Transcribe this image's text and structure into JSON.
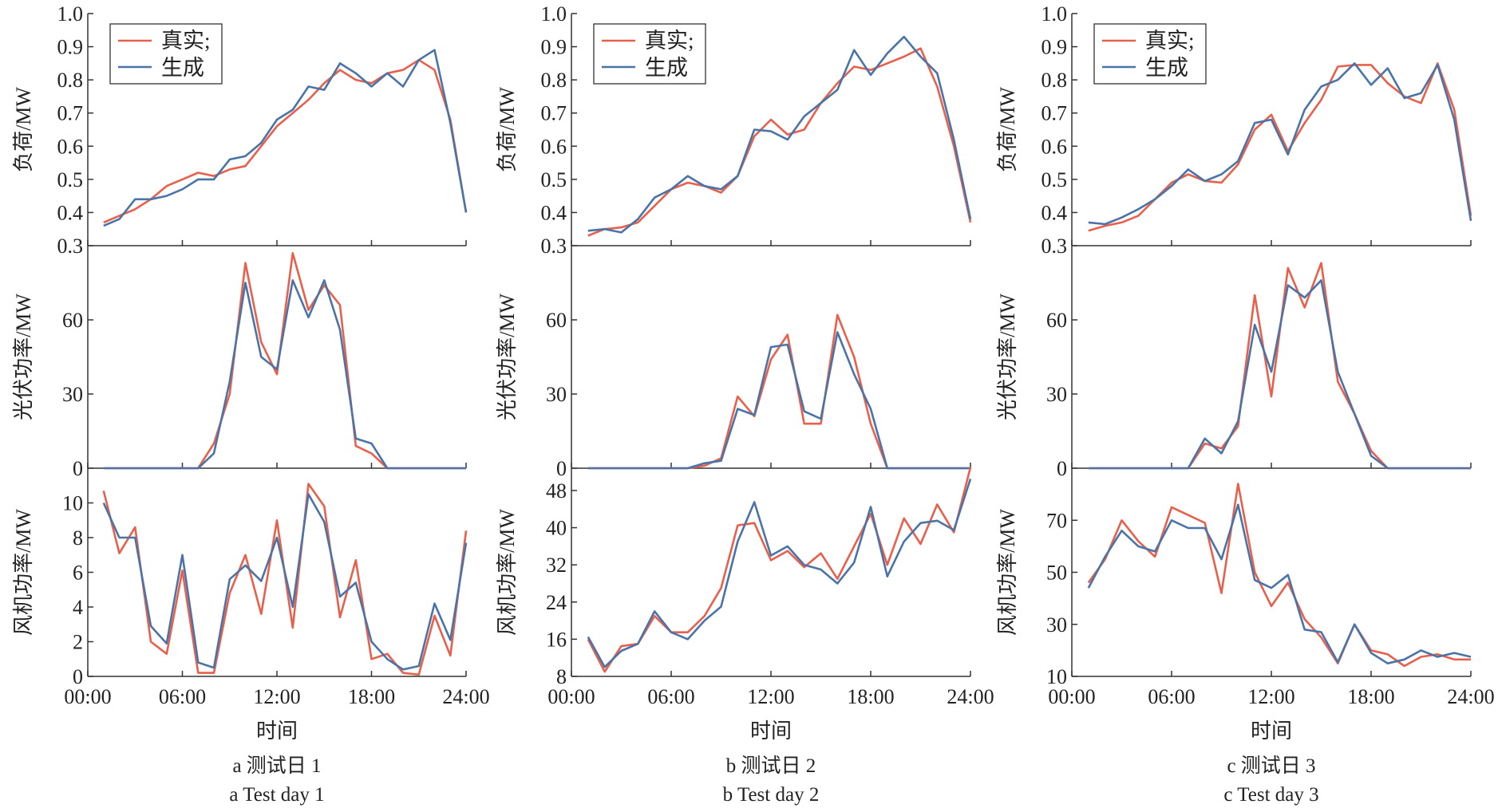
{
  "legend": {
    "real": "真实;",
    "generated": "生成"
  },
  "colors": {
    "real": "#e8604c",
    "generated": "#4a74a8",
    "axis": "#333333"
  },
  "xlabel": "时间",
  "xticks": [
    "00:00",
    "06:00",
    "12:00",
    "18:00",
    "24:00"
  ],
  "chart_data": [
    {
      "type": "line",
      "caption_cn": "a  测试日 1",
      "caption_en": "a  Test day 1",
      "x": [
        1,
        2,
        3,
        4,
        5,
        6,
        7,
        8,
        9,
        10,
        11,
        12,
        13,
        14,
        15,
        16,
        17,
        18,
        19,
        20,
        21,
        22,
        23,
        24
      ],
      "xlim": [
        0,
        24
      ],
      "panels": [
        {
          "ylabel": "负荷/MW",
          "ylim": [
            0.3,
            1.0
          ],
          "yticks": [
            "0.3",
            "0.4",
            "0.5",
            "0.6",
            "0.7",
            "0.8",
            "0.9",
            "1.0"
          ],
          "real": [
            0.37,
            0.39,
            0.41,
            0.44,
            0.48,
            0.5,
            0.52,
            0.51,
            0.53,
            0.54,
            0.6,
            0.66,
            0.7,
            0.74,
            0.79,
            0.83,
            0.8,
            0.79,
            0.82,
            0.83,
            0.86,
            0.83,
            0.68,
            0.4
          ],
          "generated": [
            0.36,
            0.38,
            0.44,
            0.44,
            0.45,
            0.47,
            0.5,
            0.5,
            0.56,
            0.57,
            0.61,
            0.68,
            0.71,
            0.78,
            0.77,
            0.85,
            0.82,
            0.78,
            0.82,
            0.78,
            0.86,
            0.89,
            0.67,
            0.4
          ]
        },
        {
          "ylabel": "光伏功率/MW",
          "ylim": [
            0,
            90
          ],
          "yticks": [
            "0",
            "30",
            "60"
          ],
          "real": [
            0,
            0,
            0,
            0,
            0,
            0,
            0,
            10,
            30,
            83,
            51,
            38,
            87,
            64,
            74,
            66,
            9,
            6,
            0,
            0,
            0,
            0,
            0,
            0
          ],
          "generated": [
            0,
            0,
            0,
            0,
            0,
            0,
            0,
            6,
            35,
            75,
            45,
            40,
            76,
            61,
            76,
            56,
            12,
            10,
            0,
            0,
            0,
            0,
            0,
            0
          ]
        },
        {
          "ylabel": "风机功率/MW",
          "ylim": [
            0,
            12
          ],
          "yticks": [
            "0",
            "2",
            "4",
            "6",
            "8",
            "10"
          ],
          "real": [
            10.7,
            7.1,
            8.6,
            2.0,
            1.3,
            6.1,
            0.2,
            0.2,
            4.8,
            7.0,
            3.6,
            9.0,
            2.8,
            11.1,
            9.8,
            3.4,
            6.7,
            1.0,
            1.3,
            0.2,
            0.1,
            3.5,
            1.2,
            8.4
          ],
          "generated": [
            10.0,
            8.0,
            8.0,
            2.9,
            1.9,
            7.0,
            0.8,
            0.5,
            5.6,
            6.4,
            5.5,
            8.0,
            4.0,
            10.5,
            8.9,
            4.6,
            5.4,
            2.0,
            1.0,
            0.4,
            0.6,
            4.2,
            2.1,
            7.7
          ]
        }
      ]
    },
    {
      "type": "line",
      "caption_cn": "b  测试日 2",
      "caption_en": "b  Test day 2",
      "x": [
        1,
        2,
        3,
        4,
        5,
        6,
        7,
        8,
        9,
        10,
        11,
        12,
        13,
        14,
        15,
        16,
        17,
        18,
        19,
        20,
        21,
        22,
        23,
        24
      ],
      "xlim": [
        0,
        24
      ],
      "panels": [
        {
          "ylabel": "负荷/MW",
          "ylim": [
            0.3,
            1.0
          ],
          "yticks": [
            "0.3",
            "0.4",
            "0.5",
            "0.6",
            "0.7",
            "0.8",
            "0.9",
            "1.0"
          ],
          "real": [
            0.33,
            0.35,
            0.355,
            0.37,
            0.42,
            0.47,
            0.49,
            0.48,
            0.46,
            0.51,
            0.63,
            0.68,
            0.635,
            0.65,
            0.73,
            0.79,
            0.84,
            0.83,
            0.85,
            0.87,
            0.895,
            0.78,
            0.6,
            0.37
          ],
          "generated": [
            0.345,
            0.35,
            0.34,
            0.38,
            0.445,
            0.47,
            0.51,
            0.48,
            0.47,
            0.51,
            0.65,
            0.645,
            0.62,
            0.69,
            0.73,
            0.77,
            0.89,
            0.815,
            0.88,
            0.93,
            0.87,
            0.82,
            0.62,
            0.38
          ]
        },
        {
          "ylabel": "光伏功率/MW",
          "ylim": [
            0,
            90
          ],
          "yticks": [
            "0",
            "30",
            "60"
          ],
          "real": [
            0,
            0,
            0,
            0,
            0,
            0,
            0,
            1,
            4,
            29,
            21,
            44,
            54,
            18,
            18,
            62,
            45,
            18,
            0,
            0,
            0,
            0,
            0,
            0
          ],
          "generated": [
            0,
            0,
            0,
            0,
            0,
            0,
            0,
            2,
            3,
            24,
            21.5,
            49,
            50,
            23,
            20,
            55,
            38,
            24,
            0,
            0,
            0,
            0,
            0,
            0
          ]
        },
        {
          "ylabel": "风机功率/MW",
          "ylim": [
            8,
            52.8
          ],
          "yticks": [
            "8",
            "16",
            "24",
            "32",
            "40",
            "48"
          ],
          "real": [
            16,
            9,
            14.5,
            15,
            21,
            17.5,
            17.5,
            21,
            27,
            40.5,
            41,
            33,
            35,
            31.5,
            34.5,
            29,
            36,
            43,
            32,
            42,
            36.5,
            45,
            39,
            53
          ],
          "generated": [
            16.5,
            10,
            13.5,
            15,
            22,
            17.5,
            16,
            20,
            23,
            37,
            45.5,
            34,
            36,
            32,
            31,
            28,
            32.5,
            44.5,
            29.5,
            37,
            41,
            41.5,
            39.5,
            50.5
          ]
        }
      ]
    },
    {
      "type": "line",
      "caption_cn": "c  测试日 3",
      "caption_en": "c  Test day 3",
      "x": [
        1,
        2,
        3,
        4,
        5,
        6,
        7,
        8,
        9,
        10,
        11,
        12,
        13,
        14,
        15,
        16,
        17,
        18,
        19,
        20,
        21,
        22,
        23,
        24
      ],
      "xlim": [
        0,
        24
      ],
      "panels": [
        {
          "ylabel": "负荷/MW",
          "ylim": [
            0.3,
            1.0
          ],
          "yticks": [
            "0.3",
            "0.4",
            "0.5",
            "0.6",
            "0.7",
            "0.8",
            "0.9",
            "1.0"
          ],
          "real": [
            0.345,
            0.36,
            0.37,
            0.39,
            0.44,
            0.49,
            0.515,
            0.495,
            0.49,
            0.545,
            0.65,
            0.695,
            0.585,
            0.67,
            0.74,
            0.84,
            0.845,
            0.845,
            0.79,
            0.75,
            0.73,
            0.85,
            0.71,
            0.39
          ],
          "generated": [
            0.37,
            0.365,
            0.385,
            0.41,
            0.44,
            0.48,
            0.53,
            0.495,
            0.515,
            0.555,
            0.67,
            0.68,
            0.575,
            0.71,
            0.78,
            0.8,
            0.85,
            0.785,
            0.835,
            0.745,
            0.76,
            0.845,
            0.68,
            0.375
          ]
        },
        {
          "ylabel": "光伏功率/MW",
          "ylim": [
            0,
            90
          ],
          "yticks": [
            "0",
            "30",
            "60"
          ],
          "real": [
            0,
            0,
            0,
            0,
            0,
            0,
            0,
            10,
            8,
            17,
            70,
            29,
            81,
            65,
            83,
            35,
            22,
            7,
            0,
            0,
            0,
            0,
            0,
            0
          ],
          "generated": [
            0,
            0,
            0,
            0,
            0,
            0,
            0,
            12,
            6,
            19,
            58,
            39,
            74,
            69,
            76,
            39,
            22,
            5,
            0,
            0,
            0,
            0,
            0,
            0
          ]
        },
        {
          "ylabel": "风机功率/MW",
          "ylim": [
            10,
            90
          ],
          "yticks": [
            "10",
            "30",
            "50",
            "70"
          ],
          "real": [
            46,
            55,
            70,
            62,
            56,
            75,
            72,
            69,
            42,
            84,
            50,
            37,
            46,
            32,
            25,
            15,
            30,
            20,
            18.5,
            14,
            17.5,
            18.5,
            16.5,
            16.5
          ],
          "generated": [
            44,
            56,
            66,
            60,
            58,
            70,
            67,
            67,
            55,
            76,
            47,
            44,
            49,
            28,
            27,
            15.5,
            30,
            19,
            15,
            16.5,
            20,
            17.5,
            19,
            17.5
          ]
        }
      ]
    }
  ]
}
